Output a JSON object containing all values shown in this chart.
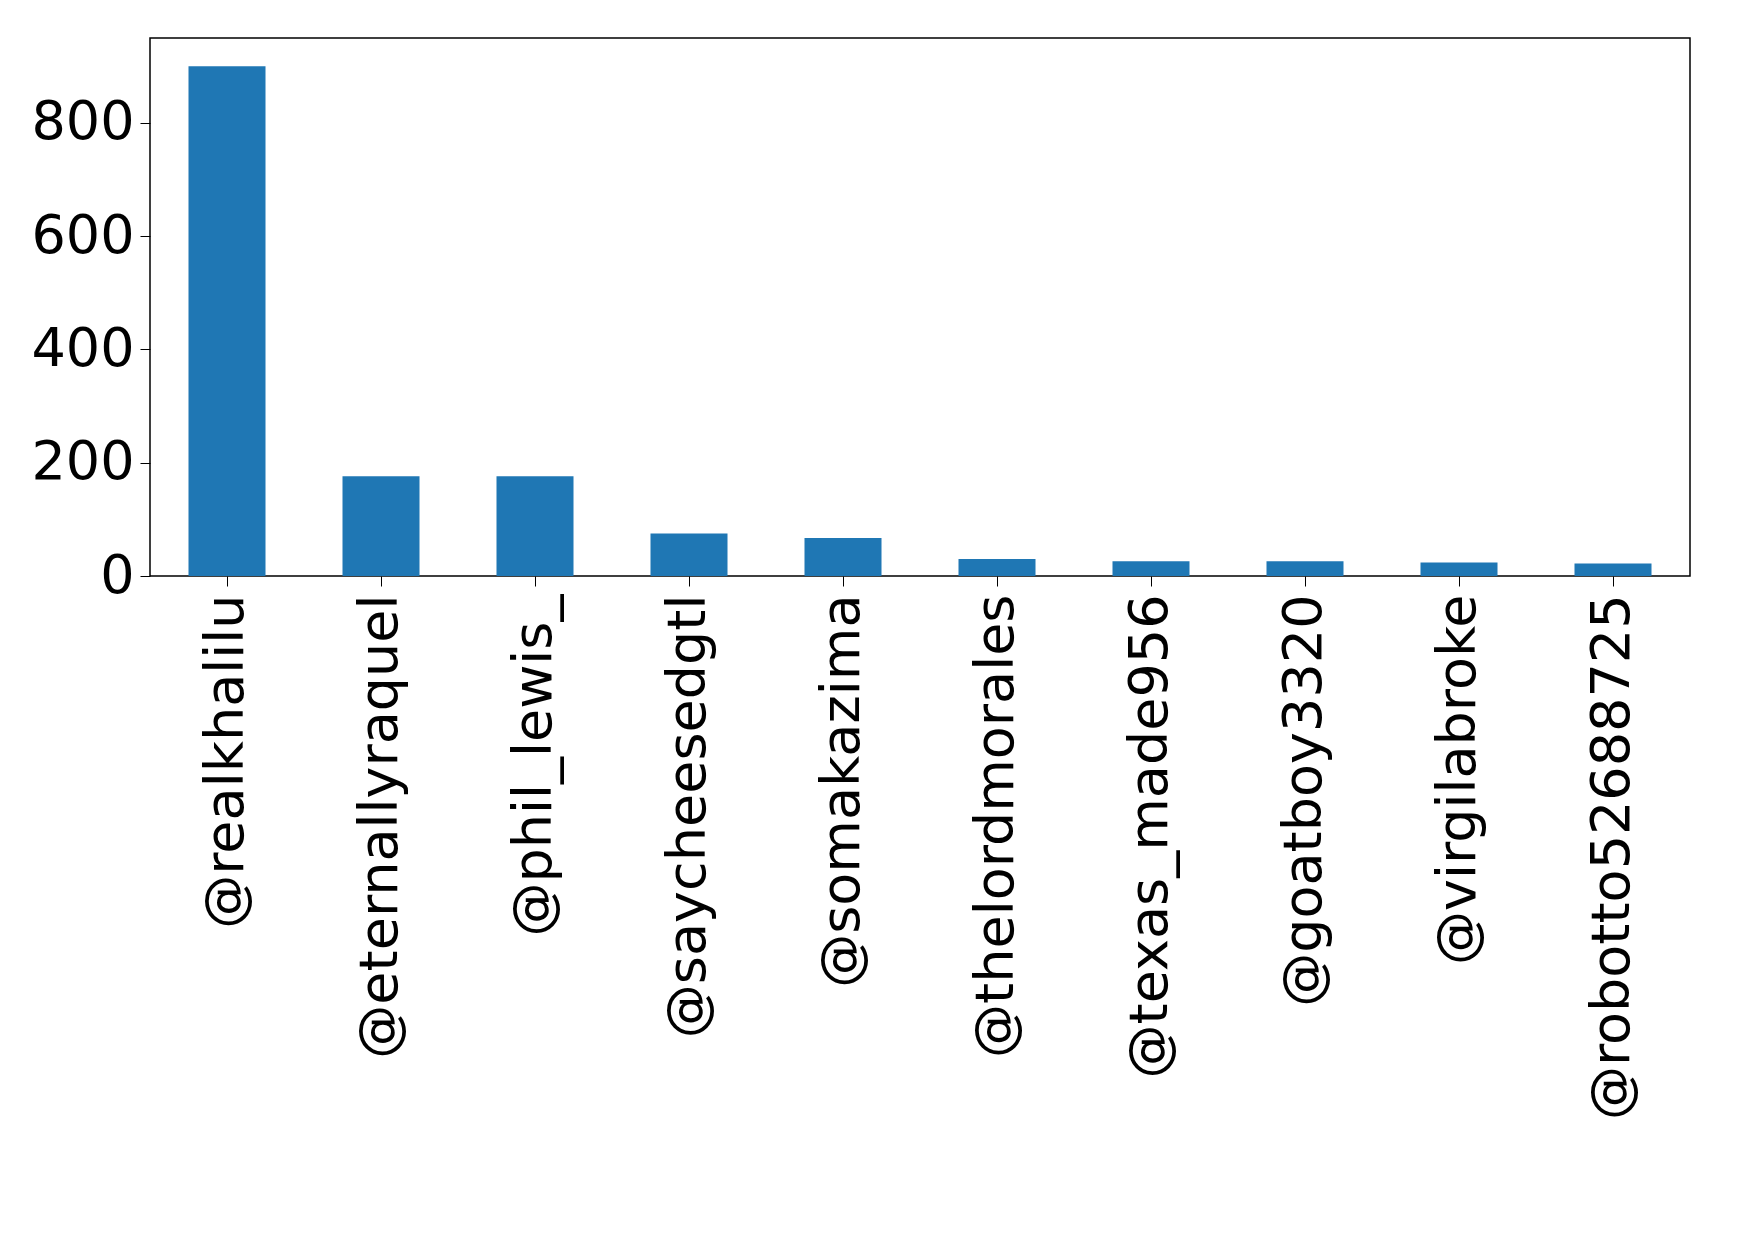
{
  "chart_data": {
    "type": "bar",
    "categories": [
      "@realkhalilu",
      "@eternallyraquel",
      "@phil_lewis_",
      "@saycheesedgtl",
      "@somakazima",
      "@thelordmorales",
      "@texas_made956",
      "@goatboy3320",
      "@virgilabroke",
      "@robotto52688725"
    ],
    "values": [
      900,
      176,
      176,
      75,
      67,
      30,
      26,
      26,
      24,
      22
    ],
    "color": "#1f77b4",
    "ylim": [
      0,
      950
    ],
    "yticks": [
      0,
      200,
      400,
      600,
      800
    ],
    "grid": false
  }
}
